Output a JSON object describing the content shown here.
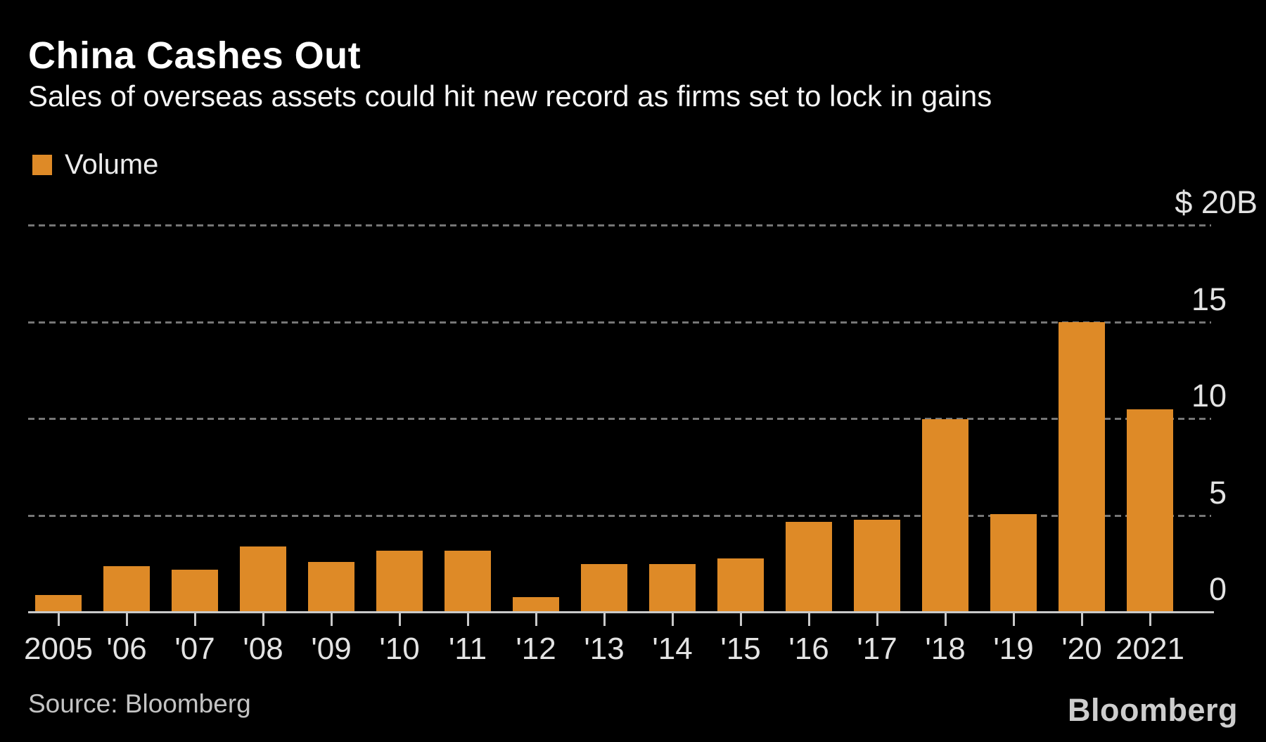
{
  "header": {
    "title": "China Cashes Out",
    "subtitle": "Sales of overseas assets could hit new record as firms set to lock in gains"
  },
  "chart_data": {
    "type": "bar",
    "title": "China Cashes Out",
    "subtitle": "Sales of overseas assets could hit new record as firms set to lock in gains",
    "series_name": "Volume",
    "unit": "$B",
    "categories": [
      "2005",
      "'06",
      "'07",
      "'08",
      "'09",
      "'10",
      "'11",
      "'12",
      "'13",
      "'14",
      "'15",
      "'16",
      "'17",
      "'18",
      "'19",
      "'20",
      "2021"
    ],
    "values": [
      0.9,
      2.4,
      2.2,
      3.4,
      2.6,
      3.2,
      3.2,
      0.8,
      2.5,
      2.5,
      2.8,
      4.7,
      4.8,
      10.0,
      5.1,
      15.0,
      10.5
    ],
    "ylim": [
      0,
      20
    ],
    "yticks": [
      {
        "value": 20,
        "label": "$ 20B",
        "gridline": true
      },
      {
        "value": 15,
        "label": "15",
        "gridline": true
      },
      {
        "value": 10,
        "label": "10",
        "gridline": true
      },
      {
        "value": 5,
        "label": "5",
        "gridline": true
      },
      {
        "value": 0,
        "label": "0",
        "gridline": false
      }
    ],
    "grid": "dotted-horizontal",
    "legend_position": "top-left",
    "bar_color": "#DE8A27"
  },
  "colors": {
    "background": "#000000",
    "bar": "#DE8A27",
    "gridline": "#767676",
    "axis": "#C9C9C9",
    "axis_text": "#E3E3E3",
    "title_text": "#FFFFFF",
    "source_text": "#C4C4C4",
    "logo_text": "#CDCDCD"
  },
  "footer": {
    "source": "Source: Bloomberg",
    "logo": "Bloomberg"
  }
}
